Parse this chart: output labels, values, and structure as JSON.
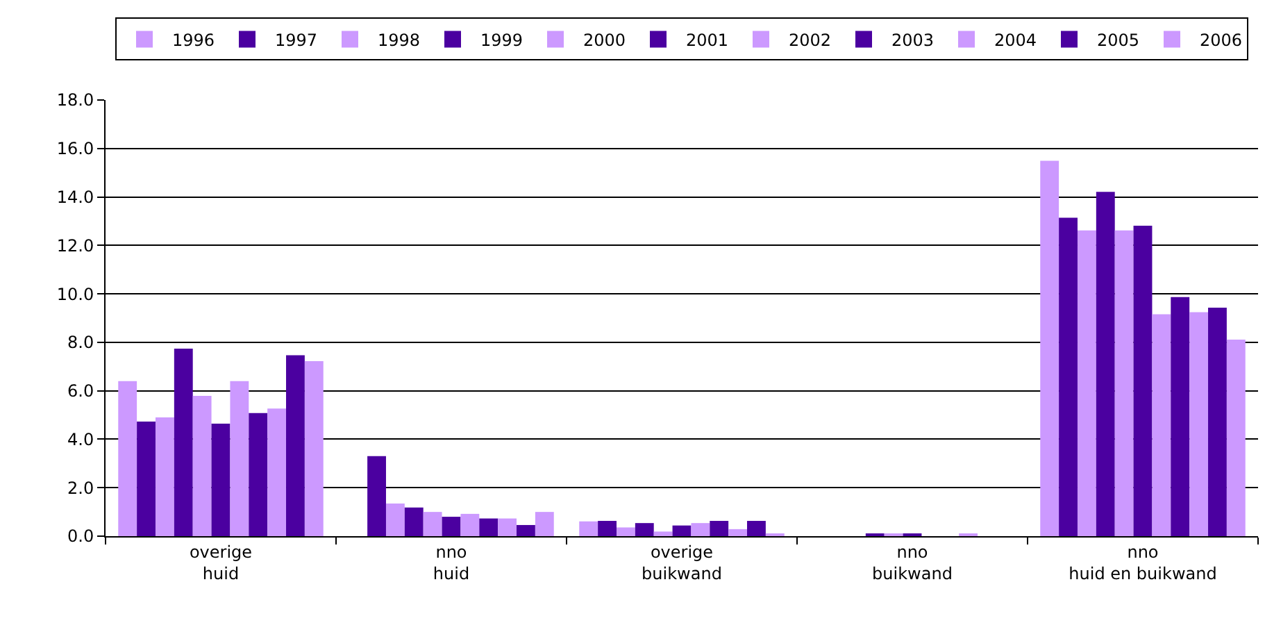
{
  "chart_data": {
    "type": "bar",
    "categories": [
      "overige\nhuid",
      "nno\nhuid",
      "overige\nbuikwand",
      "nno\nbuikwand",
      "nno\nhuid en buikwand"
    ],
    "series": [
      {
        "name": "1996",
        "color": "#cc99ff",
        "values": [
          6.4,
          null,
          0.61,
          null,
          15.49
        ]
      },
      {
        "name": "1997",
        "color": "#4b00a0",
        "values": [
          4.73,
          3.3,
          0.63,
          null,
          13.14
        ]
      },
      {
        "name": "1998",
        "color": "#cc99ff",
        "values": [
          4.9,
          1.35,
          0.36,
          null,
          12.62
        ]
      },
      {
        "name": "1999",
        "color": "#4b00a0",
        "values": [
          7.74,
          1.18,
          0.54,
          0.1,
          14.21
        ]
      },
      {
        "name": "2000",
        "color": "#cc99ff",
        "values": [
          5.79,
          1.0,
          0.19,
          0.1,
          12.62
        ]
      },
      {
        "name": "2001",
        "color": "#4b00a0",
        "values": [
          4.64,
          0.8,
          0.44,
          0.1,
          12.81
        ]
      },
      {
        "name": "2002",
        "color": "#cc99ff",
        "values": [
          6.4,
          0.92,
          0.54,
          null,
          9.16
        ]
      },
      {
        "name": "2003",
        "color": "#4b00a0",
        "values": [
          5.08,
          0.73,
          0.63,
          null,
          9.87
        ]
      },
      {
        "name": "2004",
        "color": "#cc99ff",
        "values": [
          5.27,
          0.73,
          0.29,
          0.1,
          9.24
        ]
      },
      {
        "name": "2005",
        "color": "#4b00a0",
        "values": [
          7.47,
          0.46,
          0.63,
          null,
          9.43
        ]
      },
      {
        "name": "2006",
        "color": "#cc99ff",
        "values": [
          7.22,
          1.0,
          0.1,
          null,
          8.11
        ]
      }
    ],
    "ylim": [
      0,
      18
    ],
    "yticks": [
      {
        "value": 0,
        "label": "0.0"
      },
      {
        "value": 2,
        "label": "2.0"
      },
      {
        "value": 4,
        "label": "4.0"
      },
      {
        "value": 6,
        "label": "6.0"
      },
      {
        "value": 8,
        "label": "8.0"
      },
      {
        "value": 10,
        "label": "10.0"
      },
      {
        "value": 12,
        "label": "12.0"
      },
      {
        "value": 14,
        "label": "14.0"
      },
      {
        "value": 16,
        "label": "16.0"
      },
      {
        "value": 18,
        "label": "18.0"
      }
    ],
    "grid": "y",
    "legend": "top"
  }
}
